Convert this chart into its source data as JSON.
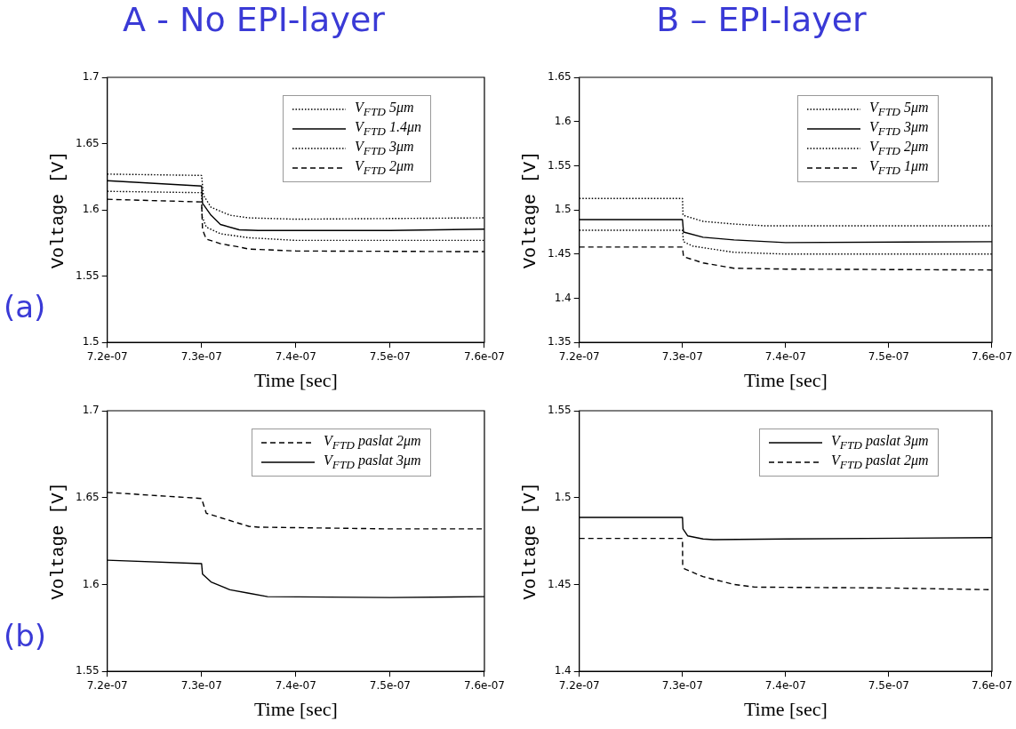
{
  "chart_data": [
    {
      "type": "line",
      "title": "A - No EPI-layer",
      "xlabel": "Time [sec]",
      "ylabel": "Voltage [V]",
      "annotations": [
        "(a)"
      ],
      "grid": false,
      "legend": "top right",
      "marker": "none",
      "xlim": [
        7.2e-07,
        7.6e-07
      ],
      "xticks": [
        {
          "value": 7.2e-07,
          "label": "7.2e-07"
        },
        {
          "value": 7.3e-07,
          "label": "7.3e-07"
        },
        {
          "value": 7.4e-07,
          "label": "7.4e-07"
        },
        {
          "value": 7.5e-07,
          "label": "7.5e-07"
        },
        {
          "value": 7.6e-07,
          "label": "7.6e-07"
        }
      ],
      "ylim": [
        1.5,
        1.7
      ],
      "yticks": [
        1.5,
        1.55,
        1.6,
        1.65,
        1.7
      ],
      "series": [
        {
          "name": "V$_{FTD}$ 5μm",
          "color": "#000000",
          "line_style": "dotted",
          "x": [
            7.2e-07,
            7.3e-07,
            7.302e-07,
            7.31e-07,
            7.33e-07,
            7.35e-07,
            7.4e-07,
            7.6e-07
          ],
          "values": [
            1.627,
            1.626,
            1.611,
            1.602,
            1.596,
            1.594,
            1.593,
            1.594
          ]
        },
        {
          "name": "V$_{FTD}$ 1.4μn",
          "color": "#000000",
          "line_style": "solid",
          "x": [
            7.2e-07,
            7.3e-07,
            7.301e-07,
            7.31e-07,
            7.32e-07,
            7.34e-07,
            7.36e-07,
            7.5e-07,
            7.6e-07
          ],
          "values": [
            1.622,
            1.618,
            1.605,
            1.596,
            1.589,
            1.585,
            1.5845,
            1.5845,
            1.5855
          ]
        },
        {
          "name": "V$_{FTD}$ 3μm",
          "color": "#000000",
          "line_style": "dotted",
          "x": [
            7.2e-07,
            7.3e-07,
            7.3005e-07,
            7.305e-07,
            7.32e-07,
            7.35e-07,
            7.4e-07,
            7.6e-07
          ],
          "values": [
            1.614,
            1.613,
            1.595,
            1.587,
            1.582,
            1.579,
            1.577,
            1.577
          ]
        },
        {
          "name": "V$_{FTD}$ 2μm",
          "color": "#000000",
          "line_style": "dashed",
          "x": [
            7.2e-07,
            7.3e-07,
            7.301e-07,
            7.305e-07,
            7.32e-07,
            7.34e-07,
            7.35e-07,
            7.4e-07,
            7.6e-07
          ],
          "values": [
            1.608,
            1.606,
            1.585,
            1.578,
            1.5745,
            1.572,
            1.5705,
            1.569,
            1.5685
          ]
        }
      ]
    },
    {
      "type": "line",
      "title": "B – EPI-layer",
      "xlabel": "Time [sec]",
      "ylabel": "Voltage [V]",
      "grid": false,
      "legend": "top right",
      "marker": "none",
      "xlim": [
        7.2e-07,
        7.6e-07
      ],
      "xticks": [
        {
          "value": 7.2e-07,
          "label": "7.2e-07"
        },
        {
          "value": 7.3e-07,
          "label": "7.3e-07"
        },
        {
          "value": 7.4e-07,
          "label": "7.4e-07"
        },
        {
          "value": 7.5e-07,
          "label": "7.5e-07"
        },
        {
          "value": 7.6e-07,
          "label": "7.6e-07"
        }
      ],
      "ylim": [
        1.35,
        1.65
      ],
      "yticks": [
        1.35,
        1.4,
        1.45,
        1.5,
        1.55,
        1.6,
        1.65
      ],
      "series": [
        {
          "name": "V$_{FTD}$ 5μm",
          "color": "#000000",
          "line_style": "dotted",
          "x": [
            7.2e-07,
            7.3e-07,
            7.3005e-07,
            7.32e-07,
            7.35e-07,
            7.38e-07,
            7.6e-07
          ],
          "values": [
            1.513,
            1.513,
            1.494,
            1.487,
            1.484,
            1.482,
            1.482
          ]
        },
        {
          "name": "V$_{FTD}$ 3μm",
          "color": "#000000",
          "line_style": "solid",
          "x": [
            7.2e-07,
            7.3e-07,
            7.301e-07,
            7.32e-07,
            7.35e-07,
            7.4e-07,
            7.6e-07
          ],
          "values": [
            1.489,
            1.489,
            1.475,
            1.469,
            1.466,
            1.463,
            1.464
          ]
        },
        {
          "name": "V$_{FTD}$ 2μm",
          "color": "#000000",
          "line_style": "dotted",
          "x": [
            7.2e-07,
            7.3e-07,
            7.301e-07,
            7.31e-07,
            7.35e-07,
            7.4e-07,
            7.6e-07
          ],
          "values": [
            1.477,
            1.477,
            1.464,
            1.459,
            1.452,
            1.45,
            1.45
          ]
        },
        {
          "name": "V$_{FTD}$ 1μm",
          "color": "#000000",
          "line_style": "dashed",
          "x": [
            7.2e-07,
            7.3e-07,
            7.301e-07,
            7.32e-07,
            7.35e-07,
            7.4e-07,
            7.6e-07
          ],
          "values": [
            1.458,
            1.458,
            1.447,
            1.44,
            1.434,
            1.433,
            1.432
          ]
        }
      ]
    },
    {
      "type": "line",
      "xlabel": "Time [sec]",
      "ylabel": "Voltage [V]",
      "annotations": [
        "(b)"
      ],
      "grid": false,
      "legend": "top right",
      "marker": "none",
      "xlim": [
        7.2e-07,
        7.6e-07
      ],
      "xticks": [
        {
          "value": 7.2e-07,
          "label": "7.2e-07"
        },
        {
          "value": 7.3e-07,
          "label": "7.3e-07"
        },
        {
          "value": 7.4e-07,
          "label": "7.4e-07"
        },
        {
          "value": 7.5e-07,
          "label": "7.5e-07"
        },
        {
          "value": 7.6e-07,
          "label": "7.6e-07"
        }
      ],
      "ylim": [
        1.55,
        1.7
      ],
      "yticks": [
        1.55,
        1.6,
        1.65,
        1.7
      ],
      "series": [
        {
          "name": "V$_{FTD}$ paslat 2μm",
          "color": "#000000",
          "line_style": "dashed",
          "x": [
            7.2e-07,
            7.3e-07,
            7.302e-07,
            7.305e-07,
            7.32e-07,
            7.35e-07,
            7.36e-07,
            7.5e-07,
            7.6e-07
          ],
          "values": [
            1.653,
            1.6495,
            1.646,
            1.641,
            1.6385,
            1.6335,
            1.633,
            1.632,
            1.632
          ]
        },
        {
          "name": "V$_{FTD}$ paslat 3μm",
          "color": "#000000",
          "line_style": "solid",
          "x": [
            7.2e-07,
            7.3e-07,
            7.301e-07,
            7.31e-07,
            7.33e-07,
            7.35e-07,
            7.37e-07,
            7.5e-07,
            7.6e-07
          ],
          "values": [
            1.614,
            1.612,
            1.606,
            1.6015,
            1.597,
            1.595,
            1.593,
            1.5925,
            1.593
          ]
        }
      ]
    },
    {
      "type": "line",
      "xlabel": "Time [sec]",
      "ylabel": "Voltage [V]",
      "grid": false,
      "legend": "top right",
      "marker": "none",
      "xlim": [
        7.2e-07,
        7.6e-07
      ],
      "xticks": [
        {
          "value": 7.2e-07,
          "label": "7.2e-07"
        },
        {
          "value": 7.3e-07,
          "label": "7.3e-07"
        },
        {
          "value": 7.4e-07,
          "label": "7.4e-07"
        },
        {
          "value": 7.5e-07,
          "label": "7.5e-07"
        },
        {
          "value": 7.6e-07,
          "label": "7.6e-07"
        }
      ],
      "ylim": [
        1.4,
        1.55
      ],
      "yticks": [
        1.4,
        1.45,
        1.5,
        1.55
      ],
      "series": [
        {
          "name": "V$_{FTD}$ paslat 3μm",
          "color": "#000000",
          "line_style": "solid",
          "x": [
            7.2e-07,
            7.3e-07,
            7.3005e-07,
            7.305e-07,
            7.32e-07,
            7.33e-07,
            7.4e-07,
            7.6e-07
          ],
          "values": [
            1.4886,
            1.4886,
            1.482,
            1.478,
            1.4762,
            1.4758,
            1.4762,
            1.477
          ]
        },
        {
          "name": "V$_{FTD}$ paslat 2μm",
          "color": "#000000",
          "line_style": "dashed",
          "x": [
            7.2e-07,
            7.3e-07,
            7.3002e-07,
            7.302e-07,
            7.32e-07,
            7.35e-07,
            7.37e-07,
            7.5e-07,
            7.6e-07
          ],
          "values": [
            1.4765,
            1.4765,
            1.461,
            1.459,
            1.4545,
            1.45,
            1.4485,
            1.448,
            1.447
          ]
        }
      ]
    }
  ]
}
